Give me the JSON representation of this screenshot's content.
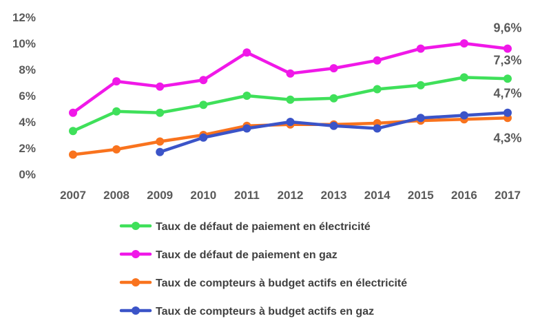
{
  "chart_data": {
    "type": "line",
    "x": [
      "2007",
      "2008",
      "2009",
      "2010",
      "2011",
      "2012",
      "2013",
      "2014",
      "2015",
      "2016",
      "2017"
    ],
    "ylim": [
      0,
      12
    ],
    "yticks": [
      {
        "value": 0,
        "label": "0%"
      },
      {
        "value": 2,
        "label": "2%"
      },
      {
        "value": 4,
        "label": "4%"
      },
      {
        "value": 6,
        "label": "6%"
      },
      {
        "value": 8,
        "label": "8%"
      },
      {
        "value": 10,
        "label": "10%"
      },
      {
        "value": 12,
        "label": "12%"
      }
    ],
    "grid": false,
    "legend_position": "bottom",
    "series": [
      {
        "name": "Taux de défaut de paiement en électricité",
        "color": "#3FE05A",
        "values": [
          3.3,
          4.8,
          4.7,
          5.3,
          6.0,
          5.7,
          5.8,
          6.5,
          6.8,
          7.4,
          7.3
        ],
        "end_label": "7,3%"
      },
      {
        "name": "Taux de défaut de paiement en gaz",
        "color": "#F018E8",
        "values": [
          4.7,
          7.1,
          6.7,
          7.2,
          9.3,
          7.7,
          8.1,
          8.7,
          9.6,
          10.0,
          9.6
        ],
        "end_label": "9,6%"
      },
      {
        "name": "Taux de compteurs à budget actifs en électricité",
        "color": "#F9731E",
        "values": [
          1.5,
          1.9,
          2.5,
          3.0,
          3.7,
          3.8,
          3.8,
          3.9,
          4.1,
          4.2,
          4.3
        ],
        "end_label": "4,3%"
      },
      {
        "name": "Taux de compteurs à budget actifs en gaz",
        "color": "#3B54C8",
        "values": [
          null,
          null,
          1.7,
          2.8,
          3.5,
          4.0,
          3.7,
          3.5,
          4.3,
          4.5,
          4.7
        ],
        "end_label": "4,7%"
      }
    ]
  }
}
